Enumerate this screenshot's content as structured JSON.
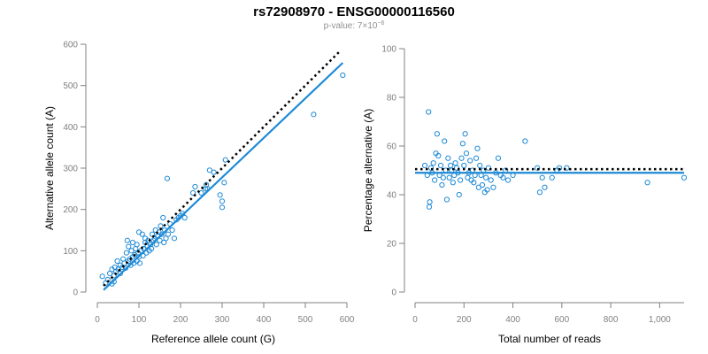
{
  "colors": {
    "points": "#1f8ad6",
    "fit": "#1f8ad6",
    "expected": "#000000",
    "axis": "#808080",
    "subtitle": "#909090"
  },
  "header": {
    "title": "rs72908970 - ENSG00000116560",
    "pvalue_prefix": "p-value: 7×10",
    "pvalue_exponent": "−6"
  },
  "chart_data": [
    {
      "type": "scatter",
      "xlabel": "Reference allele count (G)",
      "ylabel": "Alternative allele count (A)",
      "xlim": [
        0,
        600
      ],
      "ylim": [
        0,
        600
      ],
      "x_ticks": [
        "0",
        "100",
        "200",
        "300",
        "400",
        "500",
        "600"
      ],
      "y_ticks": [
        "0",
        "100",
        "200",
        "300",
        "400",
        "500",
        "600"
      ],
      "grid": false,
      "expected_line": {
        "style": "dotted",
        "points": [
          [
            15,
            15
          ],
          [
            585,
            585
          ]
        ]
      },
      "fit_line": {
        "style": "solid",
        "points": [
          [
            15,
            5
          ],
          [
            590,
            555
          ]
        ]
      },
      "points": [
        [
          12,
          38
        ],
        [
          20,
          22
        ],
        [
          25,
          30
        ],
        [
          30,
          45
        ],
        [
          35,
          20
        ],
        [
          35,
          55
        ],
        [
          40,
          25
        ],
        [
          40,
          40
        ],
        [
          42,
          60
        ],
        [
          45,
          50
        ],
        [
          48,
          75
        ],
        [
          50,
          55
        ],
        [
          55,
          65
        ],
        [
          55,
          45
        ],
        [
          60,
          60
        ],
        [
          62,
          80
        ],
        [
          65,
          70
        ],
        [
          68,
          58
        ],
        [
          70,
          95
        ],
        [
          72,
          125
        ],
        [
          75,
          110
        ],
        [
          75,
          75
        ],
        [
          78,
          80
        ],
        [
          80,
          65
        ],
        [
          82,
          100
        ],
        [
          85,
          85
        ],
        [
          85,
          120
        ],
        [
          88,
          70
        ],
        [
          90,
          90
        ],
        [
          92,
          105
        ],
        [
          95,
          75
        ],
        [
          95,
          115
        ],
        [
          98,
          95
        ],
        [
          100,
          85
        ],
        [
          100,
          145
        ],
        [
          102,
          70
        ],
        [
          105,
          100
        ],
        [
          108,
          140
        ],
        [
          110,
          88
        ],
        [
          112,
          105
        ],
        [
          115,
          120
        ],
        [
          115,
          130
        ],
        [
          118,
          95
        ],
        [
          120,
          110
        ],
        [
          122,
          125
        ],
        [
          125,
          100
        ],
        [
          128,
          115
        ],
        [
          130,
          105
        ],
        [
          132,
          140
        ],
        [
          135,
          125
        ],
        [
          138,
          130
        ],
        [
          140,
          150
        ],
        [
          142,
          115
        ],
        [
          145,
          135
        ],
        [
          148,
          145
        ],
        [
          150,
          125
        ],
        [
          152,
          160
        ],
        [
          155,
          140
        ],
        [
          158,
          180
        ],
        [
          160,
          120
        ],
        [
          162,
          150
        ],
        [
          165,
          130
        ],
        [
          168,
          275
        ],
        [
          170,
          140
        ],
        [
          175,
          165
        ],
        [
          180,
          150
        ],
        [
          185,
          130
        ],
        [
          190,
          175
        ],
        [
          195,
          180
        ],
        [
          200,
          185
        ],
        [
          205,
          190
        ],
        [
          210,
          180
        ],
        [
          230,
          240
        ],
        [
          235,
          255
        ],
        [
          250,
          240
        ],
        [
          260,
          250
        ],
        [
          262,
          260
        ],
        [
          265,
          250
        ],
        [
          270,
          295
        ],
        [
          280,
          290
        ],
        [
          295,
          235
        ],
        [
          300,
          220
        ],
        [
          300,
          205
        ],
        [
          305,
          265
        ],
        [
          308,
          320
        ],
        [
          520,
          430
        ],
        [
          590,
          525
        ]
      ]
    },
    {
      "type": "scatter",
      "xlabel": "Total number of reads",
      "ylabel": "Percentage alternative (A)",
      "xlim": [
        0,
        1100
      ],
      "ylim": [
        0,
        100
      ],
      "x_ticks": [
        "0",
        "200",
        "400",
        "600",
        "800",
        "1,000"
      ],
      "y_ticks": [
        "0",
        "20",
        "40",
        "60",
        "80",
        "100"
      ],
      "grid": false,
      "expected_line": {
        "style": "dotted",
        "y": 50.5,
        "x_range": [
          0,
          1100
        ]
      },
      "fit_line": {
        "style": "solid",
        "y": 49,
        "x_range": [
          0,
          1100
        ]
      },
      "points": [
        [
          40,
          52
        ],
        [
          50,
          48
        ],
        [
          55,
          74
        ],
        [
          58,
          35
        ],
        [
          60,
          37
        ],
        [
          65,
          51
        ],
        [
          70,
          49
        ],
        [
          75,
          53
        ],
        [
          80,
          46
        ],
        [
          85,
          57
        ],
        [
          90,
          65
        ],
        [
          95,
          56
        ],
        [
          100,
          48
        ],
        [
          105,
          52
        ],
        [
          110,
          44
        ],
        [
          115,
          47
        ],
        [
          120,
          62
        ],
        [
          125,
          50
        ],
        [
          130,
          38
        ],
        [
          135,
          55
        ],
        [
          140,
          47
        ],
        [
          145,
          52
        ],
        [
          150,
          50
        ],
        [
          155,
          45
        ],
        [
          160,
          48
        ],
        [
          165,
          53
        ],
        [
          170,
          51
        ],
        [
          175,
          49
        ],
        [
          180,
          40
        ],
        [
          185,
          46
        ],
        [
          190,
          55
        ],
        [
          195,
          61
        ],
        [
          200,
          52
        ],
        [
          205,
          65
        ],
        [
          210,
          57
        ],
        [
          215,
          47
        ],
        [
          220,
          49
        ],
        [
          225,
          54
        ],
        [
          230,
          46
        ],
        [
          235,
          50
        ],
        [
          240,
          45
        ],
        [
          245,
          48
        ],
        [
          250,
          55
        ],
        [
          255,
          59
        ],
        [
          260,
          43
        ],
        [
          265,
          52
        ],
        [
          270,
          48
        ],
        [
          275,
          44
        ],
        [
          280,
          50
        ],
        [
          285,
          41
        ],
        [
          290,
          47
        ],
        [
          295,
          42
        ],
        [
          300,
          51
        ],
        [
          310,
          46
        ],
        [
          320,
          43
        ],
        [
          330,
          49
        ],
        [
          340,
          55
        ],
        [
          350,
          48
        ],
        [
          360,
          47
        ],
        [
          370,
          50
        ],
        [
          380,
          46
        ],
        [
          400,
          48
        ],
        [
          450,
          62
        ],
        [
          500,
          51
        ],
        [
          510,
          41
        ],
        [
          520,
          47
        ],
        [
          530,
          43
        ],
        [
          560,
          47
        ],
        [
          580,
          50
        ],
        [
          590,
          51
        ],
        [
          620,
          51
        ],
        [
          950,
          45
        ],
        [
          1100,
          47
        ]
      ]
    }
  ]
}
